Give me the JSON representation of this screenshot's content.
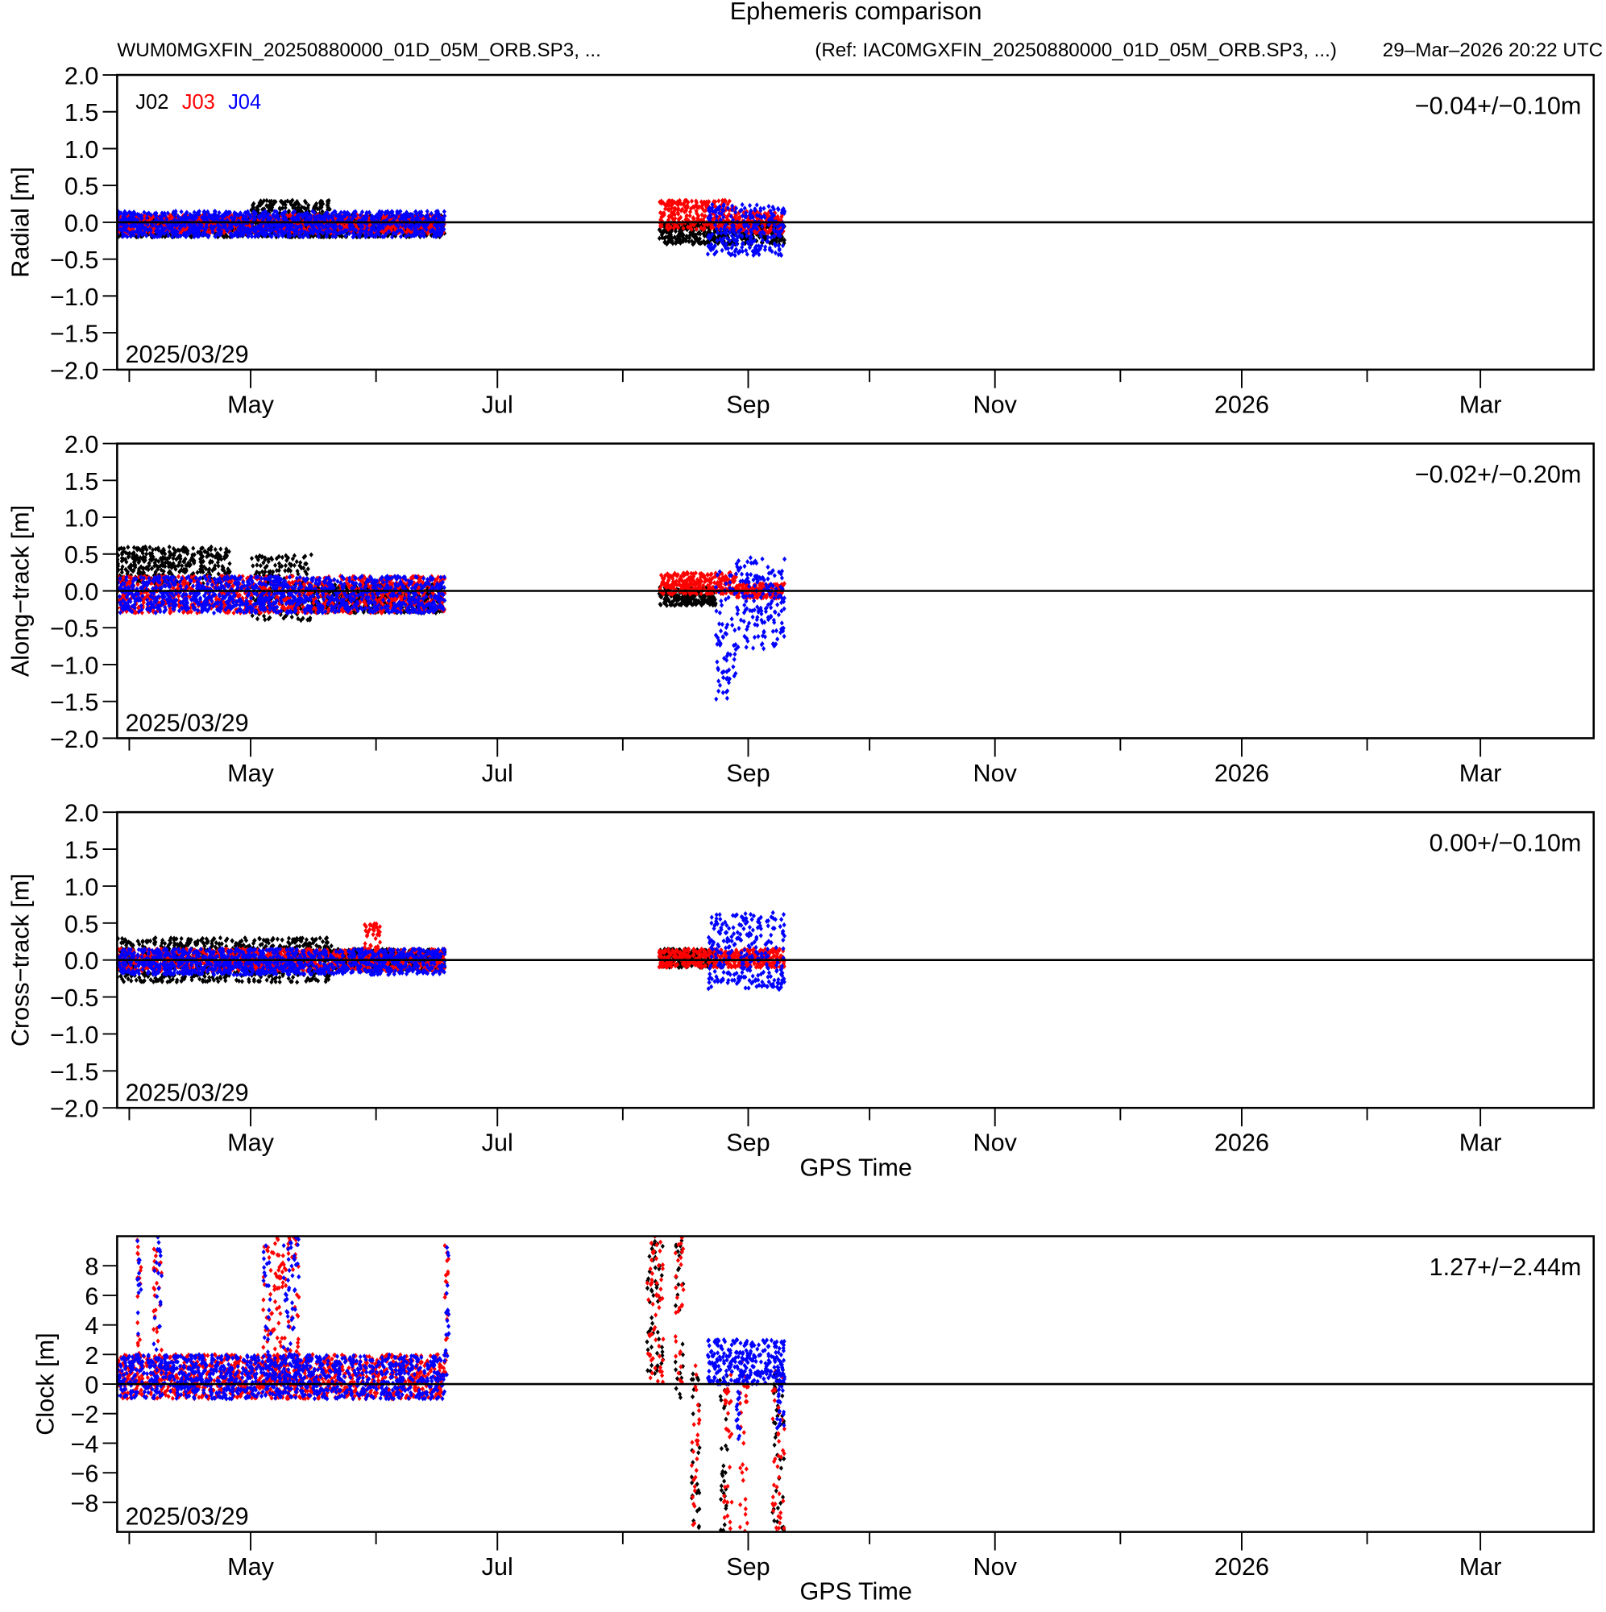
{
  "title": "Ephemeris comparison",
  "subtitle_left": "WUM0MGXFIN_20250880000_01D_05M_ORB.SP3, ...",
  "subtitle_ref": "(Ref: IAC0MGXFIN_20250880000_01D_05M_ORB.SP3, ...)",
  "timestamp": "29–Mar–2026 20:22 UTC",
  "colors": {
    "J02": "#000000",
    "J03": "#ff0000",
    "J04": "#0000ff"
  },
  "legend": [
    "J02",
    "J03",
    "J04"
  ],
  "x_axis": {
    "label": "GPS Time",
    "tick_labels": [
      "May",
      "Jul",
      "Sep",
      "Nov",
      "2026",
      "Mar"
    ],
    "major_tick_days_from_apr1": [
      30,
      91,
      153,
      214,
      275,
      334
    ],
    "minor_tick_days_from_apr1": [
      0,
      61,
      122,
      183,
      245,
      306
    ],
    "range_days_from_apr1": [
      -3,
      362
    ],
    "start_label": "2025/03/29"
  },
  "chart_data": [
    {
      "type": "scatter",
      "ylabel": "Radial [m]",
      "stat": "−0.04+/−0.10m",
      "ylim": [
        -2,
        2
      ],
      "yticks": [
        "2.0",
        "1.5",
        "1.0",
        "0.5",
        "0.0",
        "−0.5",
        "−1.0",
        "−1.5",
        "−2.0"
      ],
      "ytick_values": [
        2,
        1.5,
        1,
        0.5,
        0,
        -0.5,
        -1,
        -1.5,
        -2
      ],
      "series": [
        {
          "name": "J02",
          "spans": [
            [
              -3,
              78,
              -0.2,
              0.1
            ],
            [
              30,
              50,
              -0.2,
              0.3
            ],
            [
              131,
              162,
              -0.3,
              0.0
            ]
          ]
        },
        {
          "name": "J03",
          "spans": [
            [
              -3,
              78,
              -0.15,
              0.1
            ],
            [
              131,
              150,
              -0.1,
              0.3
            ],
            [
              150,
              162,
              -0.15,
              0.15
            ]
          ]
        },
        {
          "name": "J04",
          "spans": [
            [
              -3,
              78,
              -0.2,
              0.15
            ],
            [
              143,
              162,
              -0.45,
              0.25
            ]
          ]
        }
      ]
    },
    {
      "type": "scatter",
      "ylabel": "Along−track [m]",
      "stat": "−0.02+/−0.20m",
      "ylim": [
        -2,
        2
      ],
      "yticks": [
        "2.0",
        "1.5",
        "1.0",
        "0.5",
        "0.0",
        "−0.5",
        "−1.0",
        "−1.5",
        "−2.0"
      ],
      "ytick_values": [
        2,
        1.5,
        1,
        0.5,
        0,
        -0.5,
        -1,
        -1.5,
        -2
      ],
      "series": [
        {
          "name": "J02",
          "spans": [
            [
              -3,
              25,
              0.1,
              0.6
            ],
            [
              30,
              45,
              -0.4,
              0.5
            ],
            [
              45,
              78,
              -0.3,
              0.1
            ],
            [
              131,
              145,
              -0.2,
              0.05
            ]
          ]
        },
        {
          "name": "J03",
          "spans": [
            [
              -3,
              78,
              -0.3,
              0.2
            ],
            [
              131,
              150,
              -0.05,
              0.25
            ],
            [
              150,
              162,
              -0.1,
              0.1
            ]
          ]
        },
        {
          "name": "J04",
          "spans": [
            [
              -3,
              78,
              -0.3,
              0.2
            ],
            [
              145,
              150,
              -1.5,
              0.3
            ],
            [
              150,
              162,
              -0.8,
              0.45
            ]
          ]
        }
      ]
    },
    {
      "type": "scatter",
      "ylabel": "Cross−track [m]",
      "stat": "0.00+/−0.10m",
      "ylim": [
        -2,
        2
      ],
      "yticks": [
        "2.0",
        "1.5",
        "1.0",
        "0.5",
        "0.0",
        "−0.5",
        "−1.0",
        "−1.5",
        "−2.0"
      ],
      "ytick_values": [
        2,
        1.5,
        1,
        0.5,
        0,
        -0.5,
        -1,
        -1.5,
        -2
      ],
      "series": [
        {
          "name": "J02",
          "spans": [
            [
              -3,
              50,
              -0.3,
              0.3
            ],
            [
              50,
              78,
              -0.15,
              0.15
            ],
            [
              131,
              145,
              -0.1,
              0.15
            ]
          ]
        },
        {
          "name": "J03",
          "spans": [
            [
              -3,
              78,
              -0.15,
              0.15
            ],
            [
              58,
              62,
              -0.1,
              0.5
            ],
            [
              131,
              162,
              -0.1,
              0.15
            ]
          ]
        },
        {
          "name": "J04",
          "spans": [
            [
              -3,
              78,
              -0.2,
              0.15
            ],
            [
              143,
              162,
              -0.4,
              0.65
            ]
          ]
        }
      ]
    },
    {
      "type": "scatter",
      "ylabel": "Clock [m]",
      "stat": "1.27+/−2.44m",
      "ylim": [
        -10,
        10
      ],
      "yticks": [
        "8",
        "6",
        "4",
        "2",
        "0",
        "−2",
        "−4",
        "−6",
        "−8"
      ],
      "ytick_values": [
        8,
        6,
        4,
        2,
        0,
        -2,
        -4,
        -6,
        -8
      ],
      "series": [
        {
          "name": "J02",
          "spans": [
            [
              128,
              132,
              0,
              10
            ],
            [
              135,
              137,
              -1,
              10
            ],
            [
              139,
              141,
              -10,
              1
            ],
            [
              146,
              148,
              -10,
              1
            ],
            [
              159,
              162,
              -10,
              1
            ]
          ]
        },
        {
          "name": "J03",
          "spans": [
            [
              -3,
              78,
              -1,
              2
            ],
            [
              2,
              3,
              0,
              10
            ],
            [
              6,
              8,
              1,
              10
            ],
            [
              33,
              42,
              0,
              10
            ],
            [
              78,
              79,
              0.5,
              9.5
            ],
            [
              128,
              132,
              0,
              10
            ],
            [
              135,
              137,
              0,
              10
            ],
            [
              139,
              141,
              -10,
              1.5
            ],
            [
              147,
              149,
              -10,
              1
            ],
            [
              151,
              153,
              -10,
              2
            ],
            [
              159,
              162,
              -10,
              1
            ]
          ]
        },
        {
          "name": "J04",
          "spans": [
            [
              -3,
              78,
              -1,
              2
            ],
            [
              2,
              3,
              0,
              10
            ],
            [
              6,
              8,
              1,
              10
            ],
            [
              33,
              35,
              0,
              10
            ],
            [
              38,
              42,
              0,
              10
            ],
            [
              78,
              79,
              0.5,
              9.5
            ],
            [
              143,
              162,
              0,
              3
            ],
            [
              150,
              151,
              -4,
              1
            ],
            [
              160,
              162,
              -3,
              1
            ]
          ]
        }
      ]
    }
  ]
}
